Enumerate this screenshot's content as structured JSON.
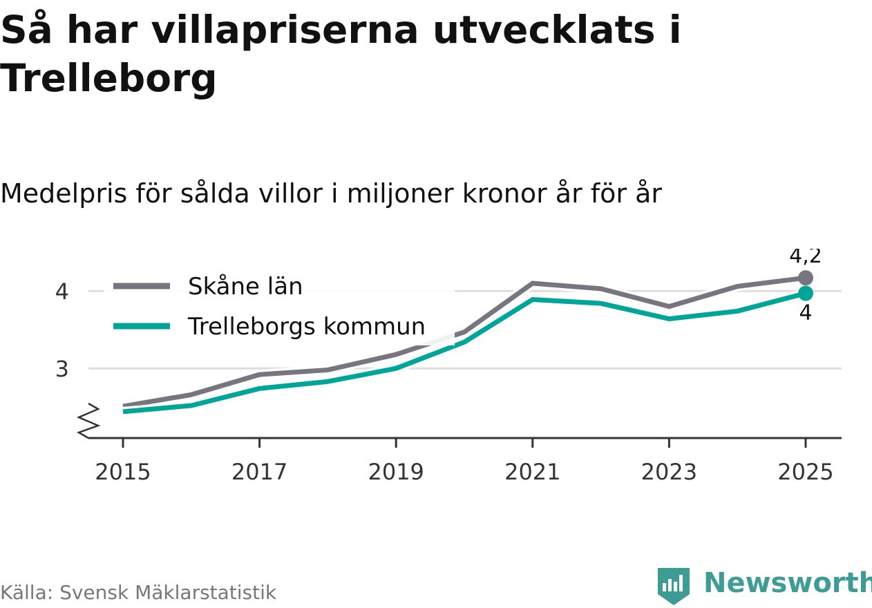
{
  "title": "Så har villapriserna utvecklats i Trelleborg",
  "subtitle": "Medelpris för sålda villor i miljoner kronor år för år",
  "source": "Källa: Svensk Mäklarstatistik",
  "brand": "Newsworthy",
  "colors": {
    "skane": "#777680",
    "trelleborg": "#00a599",
    "grid": "#dddddd",
    "axis": "#333333",
    "brand": "#3d9c94"
  },
  "chart_data": {
    "type": "line",
    "x": [
      2015,
      2016,
      2017,
      2018,
      2019,
      2020,
      2021,
      2022,
      2023,
      2024,
      2025
    ],
    "x_ticks": [
      "2015",
      "2017",
      "2019",
      "2021",
      "2023",
      "2025"
    ],
    "y_ticks": [
      "3",
      "4"
    ],
    "ylim": [
      2.1,
      4.35
    ],
    "grid": true,
    "legend_position": "top-left",
    "series": [
      {
        "name": "Skåne län",
        "values": [
          2.51,
          2.66,
          2.92,
          2.98,
          3.18,
          3.47,
          4.1,
          4.03,
          3.8,
          4.06,
          4.17
        ],
        "end_label": "4,2"
      },
      {
        "name": "Trelleborgs kommun",
        "values": [
          2.44,
          2.52,
          2.74,
          2.83,
          3.0,
          3.34,
          3.89,
          3.84,
          3.64,
          3.74,
          3.97
        ],
        "end_label": "4"
      }
    ]
  }
}
